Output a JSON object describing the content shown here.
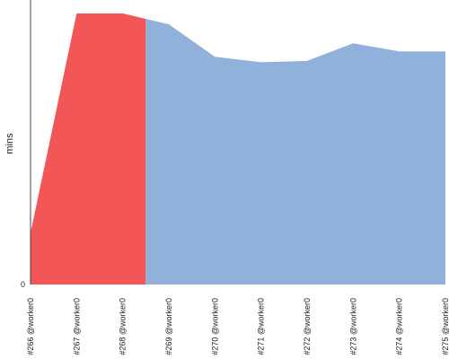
{
  "chart_data": {
    "type": "area",
    "ylabel": "mins",
    "y_ticks": [
      "0"
    ],
    "ylim": [
      0,
      100
    ],
    "categories": [
      "#266 @worker0",
      "#267 @worker0",
      "#268 @worker0",
      "#269 @worker0",
      "#270 @worker0",
      "#271 @worker0",
      "#272 @worker0",
      "#273 @worker0",
      "#274 @worker0",
      "#275 @worker0"
    ],
    "values": [
      19,
      100,
      100,
      96,
      84,
      82,
      82.5,
      89,
      86,
      86
    ],
    "segments": [
      {
        "from_index": 0,
        "to_index": 2.5,
        "color": "#f25656"
      },
      {
        "from_index": 2.5,
        "to_index": 9,
        "color": "#8fb1da"
      }
    ],
    "grid": false
  }
}
